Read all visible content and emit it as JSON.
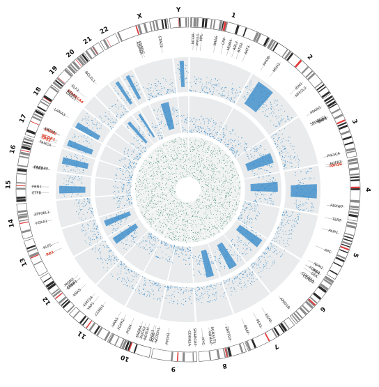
{
  "colors": {
    "ideogram_band_dark": "#2b2b2b",
    "ideogram_band_mid": "#8a8a8a",
    "centromere": "#e03b3b",
    "track_background": "#e9ebec",
    "track_points": "#2e86c8",
    "inner_points": "#2a7a5e",
    "highlight_gene": "#e0402a",
    "gene_label": "#333333"
  },
  "chromosomes": [
    {
      "name": "1",
      "size": 249
    },
    {
      "name": "2",
      "size": 242
    },
    {
      "name": "3",
      "size": 198
    },
    {
      "name": "4",
      "size": 190
    },
    {
      "name": "5",
      "size": 181
    },
    {
      "name": "6",
      "size": 171
    },
    {
      "name": "7",
      "size": 159
    },
    {
      "name": "8",
      "size": 145
    },
    {
      "name": "9",
      "size": 138
    },
    {
      "name": "10",
      "size": 134
    },
    {
      "name": "11",
      "size": 135
    },
    {
      "name": "12",
      "size": 133
    },
    {
      "name": "13",
      "size": 114
    },
    {
      "name": "14",
      "size": 107
    },
    {
      "name": "15",
      "size": 102
    },
    {
      "name": "16",
      "size": 90
    },
    {
      "name": "17",
      "size": 83
    },
    {
      "name": "18",
      "size": 80
    },
    {
      "name": "19",
      "size": 59
    },
    {
      "name": "20",
      "size": 64
    },
    {
      "name": "21",
      "size": 47
    },
    {
      "name": "22",
      "size": 51
    },
    {
      "name": "X",
      "size": 156
    },
    {
      "name": "Y",
      "size": 57
    }
  ],
  "genes": [
    {
      "label": "MTOR",
      "chr": "1",
      "pos": 0.04
    },
    {
      "label": "MYCL1",
      "chr": "1",
      "pos": 0.1
    },
    {
      "label": "MPL",
      "chr": "1",
      "pos": 0.15
    },
    {
      "label": "NRAS",
      "chr": "1",
      "pos": 0.35
    },
    {
      "label": "CRP",
      "chr": "1",
      "pos": 0.46
    },
    {
      "label": "MDM4",
      "chr": "1",
      "pos": 0.55
    },
    {
      "label": "ABL2",
      "chr": "1",
      "pos": 0.63
    },
    {
      "label": "BTG2",
      "chr": "1",
      "pos": 0.7
    },
    {
      "label": "AKT3",
      "chr": "1",
      "pos": 0.8
    },
    {
      "label": "RHOB",
      "chr": "2",
      "pos": 0.08
    },
    {
      "label": "MSH2",
      "chr": "2",
      "pos": 0.25
    },
    {
      "label": "IDH1",
      "chr": "2",
      "pos": 0.66
    },
    {
      "label": "NFE2L2",
      "chr": "2",
      "pos": 0.74
    },
    {
      "label": "PPARG",
      "chr": "3",
      "pos": 0.06
    },
    {
      "label": "SMARCC1",
      "chr": "3",
      "pos": 0.24
    },
    {
      "label": "RHOA",
      "chr": "3",
      "pos": 0.26
    },
    {
      "label": "BAP1",
      "chr": "3",
      "pos": 0.27
    },
    {
      "label": "PIK3CA",
      "chr": "3",
      "pos": 0.9
    },
    {
      "label": "IDH1B",
      "chr": "4",
      "pos": 0.05,
      "highlight": true
    },
    {
      "label": "FGFR3",
      "chr": "4",
      "pos": 0.01
    },
    {
      "label": "FBXW7",
      "chr": "4",
      "pos": 0.8
    },
    {
      "label": "TERT",
      "chr": "5",
      "pos": 0.01
    },
    {
      "label": "PAIP1",
      "chr": "5",
      "pos": 0.24
    },
    {
      "label": "APC",
      "chr": "5",
      "pos": 0.62
    },
    {
      "label": "NPM1",
      "chr": "5",
      "pos": 0.95
    },
    {
      "label": "FOXQ1",
      "chr": "6",
      "pos": 0.02
    },
    {
      "label": "IRF4",
      "chr": "6",
      "pos": 0.03
    },
    {
      "label": "DEK",
      "chr": "6",
      "pos": 0.1
    },
    {
      "label": "CDKN1A",
      "chr": "6",
      "pos": 0.21
    },
    {
      "label": "CCND3",
      "chr": "6",
      "pos": 0.24
    },
    {
      "label": "PEX1",
      "chr": "7",
      "pos": 0.58
    },
    {
      "label": "ARID1B",
      "chr": "6",
      "pos": 0.92
    },
    {
      "label": "EGFR",
      "chr": "7",
      "pos": 0.35
    },
    {
      "label": "BRAF",
      "chr": "7",
      "pos": 0.88
    },
    {
      "label": "RUNX1T1",
      "chr": "8",
      "pos": 0.62
    },
    {
      "label": "PTEN",
      "chr": "10",
      "pos": 0.66
    },
    {
      "label": "ZNF703",
      "chr": "8",
      "pos": 0.26
    },
    {
      "label": "MYC",
      "chr": "8",
      "pos": 0.88
    },
    {
      "label": "YWHAZ",
      "chr": "8",
      "pos": 0.7
    },
    {
      "label": "CDKN2A",
      "chr": "9",
      "pos": 0.16
    },
    {
      "label": "SMARCA2",
      "chr": "9",
      "pos": 0.02
    },
    {
      "label": "PTCH1",
      "chr": "9",
      "pos": 0.7
    },
    {
      "label": "NOTCH1",
      "chr": "9",
      "pos": 0.97
    },
    {
      "label": "FGFR2",
      "chr": "10",
      "pos": 0.9
    },
    {
      "label": "GATA3",
      "chr": "10",
      "pos": 0.06
    },
    {
      "label": "KLF6",
      "chr": "10",
      "pos": 0.01
    },
    {
      "label": "ERBB4",
      "chr": "10",
      "pos": 0.4
    },
    {
      "label": "ROCK2",
      "chr": "10",
      "pos": 0.3
    },
    {
      "label": "NOTCH",
      "chr": "10",
      "pos": 0.2
    },
    {
      "label": "HRAS",
      "chr": "11",
      "pos": 0.01
    },
    {
      "label": "CCND1",
      "chr": "11",
      "pos": 0.51
    },
    {
      "label": "KMT2A",
      "chr": "11",
      "pos": 0.88
    },
    {
      "label": "YAP1",
      "chr": "11",
      "pos": 0.75
    },
    {
      "label": "KRAS",
      "chr": "12",
      "pos": 0.19
    },
    {
      "label": "CDK4",
      "chr": "12",
      "pos": 0.43
    },
    {
      "label": "MDM2",
      "chr": "12",
      "pos": 0.52
    },
    {
      "label": "ERBB3",
      "chr": "12",
      "pos": 0.42
    },
    {
      "label": "RB1",
      "chr": "13",
      "pos": 0.42,
      "highlight": true
    },
    {
      "label": "KLF5",
      "chr": "13",
      "pos": 0.64
    },
    {
      "label": "FOXA1",
      "chr": "14",
      "pos": 0.35
    },
    {
      "label": "ZFP36L1",
      "chr": "14",
      "pos": 0.63
    },
    {
      "label": "ETFB",
      "chr": "15",
      "pos": 0.25
    },
    {
      "label": "FBN1",
      "chr": "15",
      "pos": 0.46
    },
    {
      "label": "TSC2",
      "chr": "16",
      "pos": 0.02
    },
    {
      "label": "CREBBP",
      "chr": "16",
      "pos": 0.04
    },
    {
      "label": "FANCA",
      "chr": "16",
      "pos": 0.99
    },
    {
      "label": "TP53",
      "chr": "17",
      "pos": 0.09,
      "highlight": true
    },
    {
      "label": "NCOR1",
      "chr": "17",
      "pos": 0.19,
      "highlight": true
    },
    {
      "label": "ERBB2",
      "chr": "17",
      "pos": 0.45,
      "highlight": true
    },
    {
      "label": "KRT14",
      "chr": "17",
      "pos": 0.48
    },
    {
      "label": "LAMA3",
      "chr": "18",
      "pos": 0.27
    },
    {
      "label": "SMARCA4",
      "chr": "19",
      "pos": 0.19,
      "highlight": true
    },
    {
      "label": "KEAP1",
      "chr": "19",
      "pos": 0.18
    },
    {
      "label": "ELF3",
      "chr": "19",
      "pos": 0.55
    },
    {
      "label": "GNA11",
      "chr": "19",
      "pos": 0.05
    },
    {
      "label": "BCL2L1",
      "chr": "20",
      "pos": 0.48
    },
    {
      "label": "KDM5C",
      "chr": "X",
      "pos": 0.35
    },
    {
      "label": "KDM6A",
      "chr": "X",
      "pos": 0.3
    },
    {
      "label": "STAG2",
      "chr": "X",
      "pos": 0.79
    }
  ]
}
